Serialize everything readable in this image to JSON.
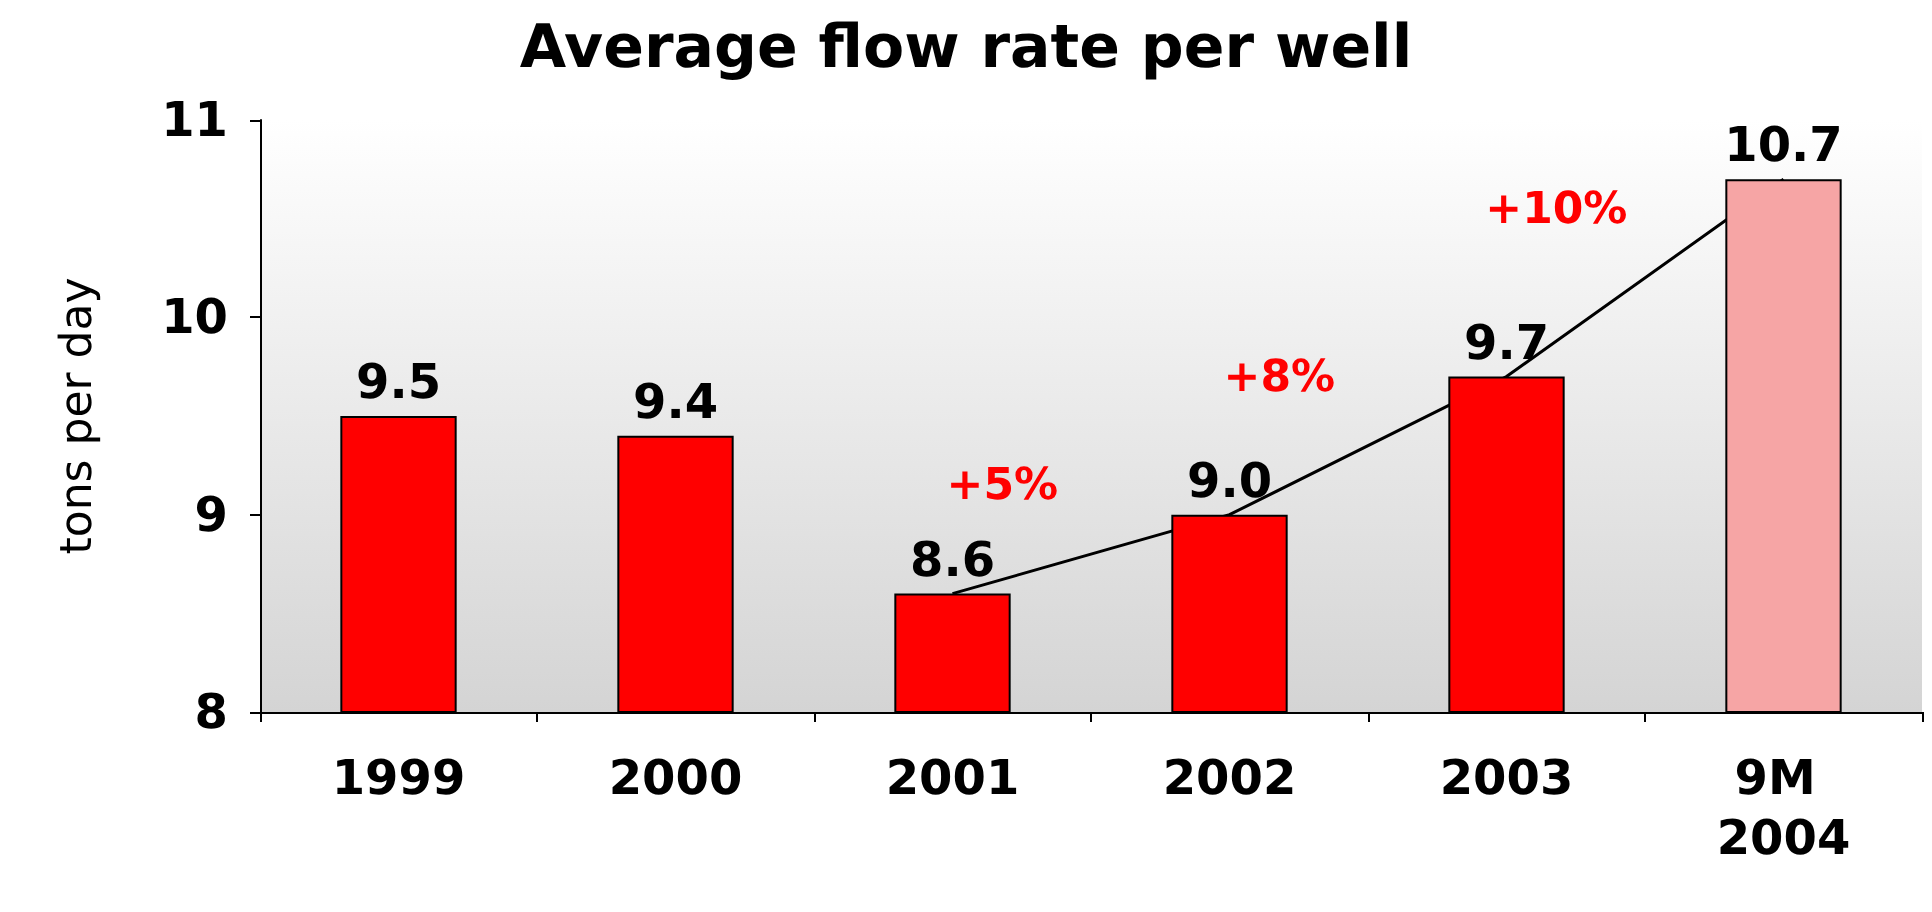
{
  "chart_data": {
    "type": "bar",
    "title": "Average flow rate per well",
    "ylabel": "tons per day",
    "categories": [
      "1999",
      "2000",
      "2001",
      "2002",
      "2003",
      "9M 2004"
    ],
    "series": [
      {
        "colors": [
          "#ff0000",
          "#ff0000",
          "#ff0000",
          "#ff0000",
          "#ff0000",
          "#f6a5a5"
        ],
        "values": [
          9.5,
          9.4,
          8.6,
          9.0,
          9.7,
          10.7
        ],
        "value_labels": [
          "9.5",
          "9.4",
          "8.6",
          "9.0",
          "9.7",
          "10.7"
        ]
      },
      {
        "type": "line",
        "color": "#000000",
        "marker": "none",
        "values": [
          null,
          null,
          8.6,
          9.0,
          9.7,
          10.7
        ]
      }
    ],
    "annotations": [
      "+5%",
      "+8%",
      "+10%"
    ],
    "ylim": [
      8,
      11
    ],
    "yticks": [
      8,
      9,
      10,
      11
    ],
    "grid": false
  }
}
